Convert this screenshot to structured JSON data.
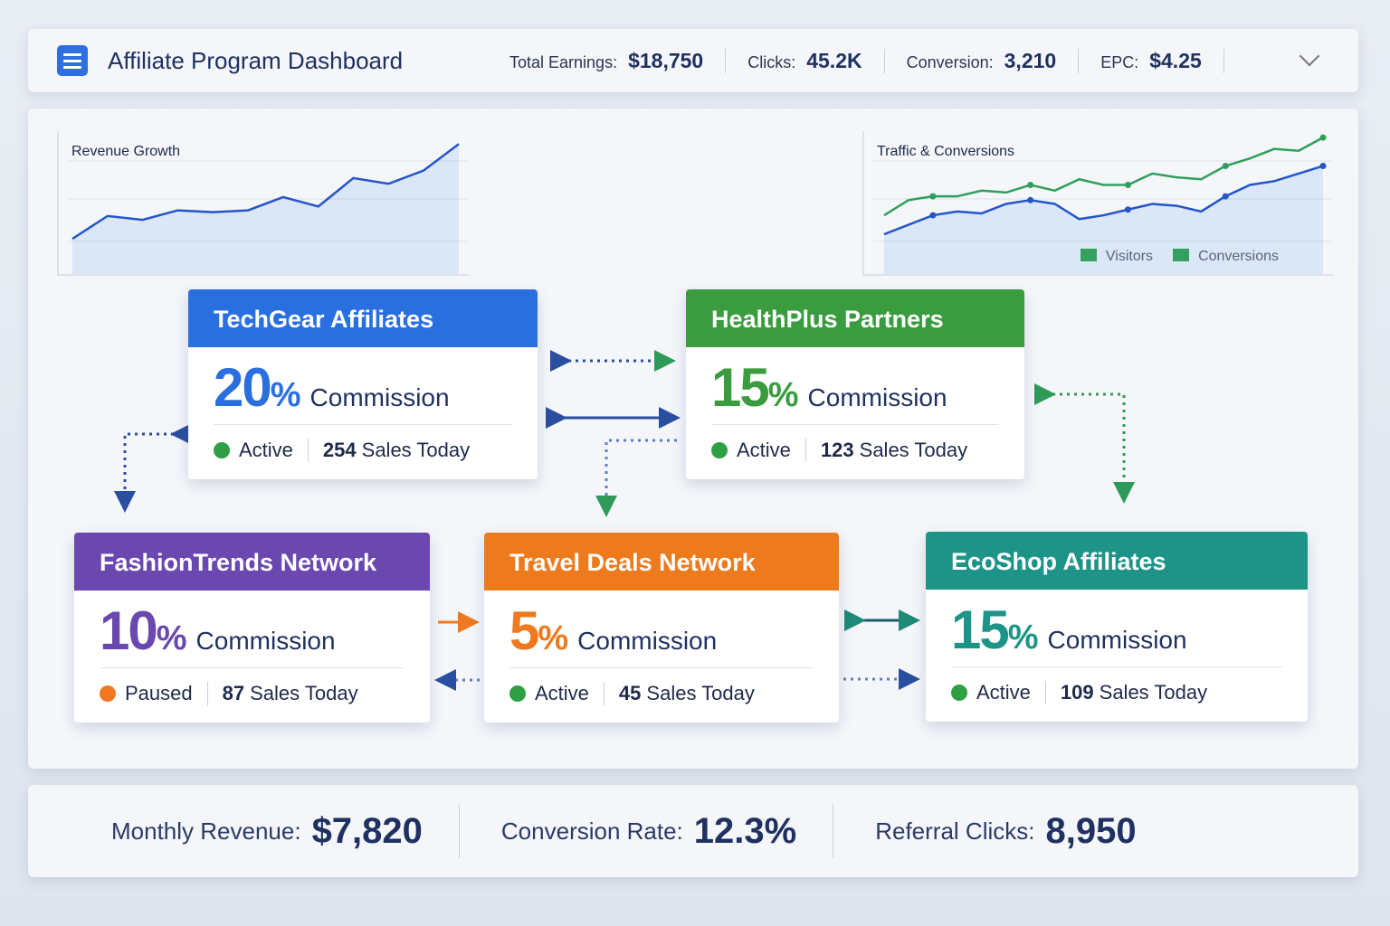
{
  "header": {
    "title": "Affiliate Program Dashboard",
    "icon": "clipboard-icon",
    "stats": [
      {
        "label": "Total Earnings:",
        "value": "$18,750"
      },
      {
        "label": "Clicks:",
        "value": "45.2K"
      },
      {
        "label": "Conversion:",
        "value": "3,210"
      },
      {
        "label": "EPC:",
        "value": "$4.25"
      }
    ]
  },
  "chart_data": [
    {
      "type": "area",
      "title": "Revenue Growth",
      "series": [
        {
          "values": [
            10,
            22,
            20,
            25,
            24,
            25,
            32,
            27,
            42,
            39,
            46,
            60
          ]
        }
      ]
    },
    {
      "type": "line",
      "title": "Traffic & Conversions",
      "legend": [
        "Visitors",
        "Conversions"
      ],
      "legend_placement": "bottom-right",
      "series": [
        {
          "name": "Visitors",
          "color": "#2ea05a",
          "values": [
            20,
            28,
            30,
            30,
            33,
            32,
            36,
            33,
            39,
            36,
            36,
            42,
            40,
            39,
            46,
            50,
            55,
            54,
            61
          ]
        },
        {
          "name": "Conversions",
          "color": "#2456c8",
          "values": [
            10,
            15,
            20,
            22,
            21,
            26,
            28,
            26,
            18,
            20,
            23,
            26,
            25,
            22,
            30,
            36,
            38,
            42,
            46
          ]
        }
      ]
    }
  ],
  "cards": [
    {
      "name": "TechGear Affiliates",
      "rate": "20",
      "pct": "%",
      "word": "Commission",
      "status": "Active",
      "sales": "254",
      "sales_label": "Sales Today",
      "color": "#2a6fe0",
      "status_color": "#2ea043"
    },
    {
      "name": "HealthPlus Partners",
      "rate": "15",
      "pct": "%",
      "word": "Commission",
      "status": "Active",
      "sales": "123",
      "sales_label": "Sales Today",
      "color": "#3a9c3e",
      "status_color": "#2ea043"
    },
    {
      "name": "FashionTrends Network",
      "rate": "10",
      "pct": "%",
      "word": "Commission",
      "status": "Paused",
      "sales": "87",
      "sales_label": "Sales Today",
      "color": "#6a48b0",
      "status_color": "#f07820"
    },
    {
      "name": "Travel Deals Network",
      "rate": "5",
      "pct": "%",
      "word": "Commission",
      "status": "Active",
      "sales": "45",
      "sales_label": "Sales Today",
      "color": "#ee7a1e",
      "status_color": "#2ea043"
    },
    {
      "name": "EcoShop Affiliates",
      "rate": "15",
      "pct": "%",
      "word": "Commission",
      "status": "Active",
      "sales": "109",
      "sales_label": "Sales Today",
      "color": "#1e9488",
      "status_color": "#2ea043"
    }
  ],
  "footer": [
    {
      "label": "Monthly Revenue:",
      "value": "$7,820"
    },
    {
      "label": "Conversion Rate:",
      "value": "12.3%"
    },
    {
      "label": "Referral Clicks:",
      "value": "8,950"
    }
  ]
}
